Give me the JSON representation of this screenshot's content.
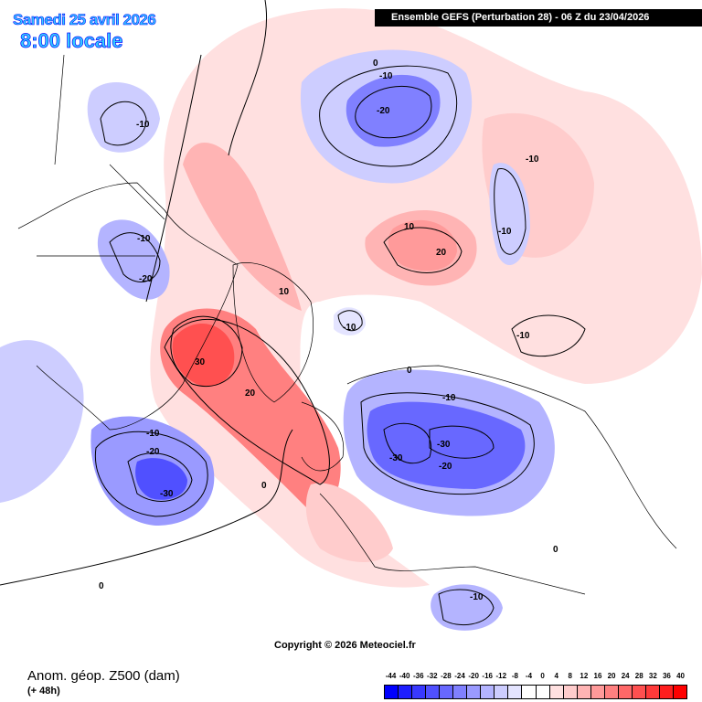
{
  "header": {
    "date": "Samedi 25 avril 2026",
    "local_time": "8:00 locale",
    "run_info": "Ensemble GEFS  (Perturbation 28)  -  06 Z du 23/04/2026"
  },
  "footer": {
    "parameter": "Anom. géop. Z500 (dam)",
    "lead_time": "(+ 48h)",
    "copyright": "Copyright © 2026 Meteociel.fr"
  },
  "legend": {
    "labels": [
      "-44",
      "-40",
      "-36",
      "-32",
      "-28",
      "-24",
      "-20",
      "-16",
      "-12",
      "-8",
      "-4",
      "0",
      "4",
      "8",
      "12",
      "16",
      "20",
      "24",
      "28",
      "32",
      "36",
      "40"
    ],
    "colors": [
      "#0000ff",
      "#1e1eff",
      "#3838ff",
      "#5050ff",
      "#6868ff",
      "#8080ff",
      "#9a9aff",
      "#b4b4ff",
      "#cdcdff",
      "#e4e4ff",
      "#ffffff",
      "#ffffff",
      "#ffe0e0",
      "#ffcccc",
      "#ffb4b4",
      "#ff9a9a",
      "#ff8080",
      "#ff6868",
      "#ff5050",
      "#ff3a3a",
      "#ff1e1e",
      "#ff0000"
    ]
  },
  "contour_labels": [
    {
      "id": "a",
      "text": "-10"
    },
    {
      "id": "b",
      "text": "-10"
    },
    {
      "id": "c",
      "text": "-20"
    },
    {
      "id": "d",
      "text": "-10"
    },
    {
      "id": "e",
      "text": "-20"
    },
    {
      "id": "f",
      "text": "-10"
    },
    {
      "id": "g",
      "text": "-20"
    },
    {
      "id": "h",
      "text": "-30"
    },
    {
      "id": "i",
      "text": "30"
    },
    {
      "id": "j",
      "text": "20"
    },
    {
      "id": "k",
      "text": "10"
    },
    {
      "id": "l",
      "text": "-10"
    },
    {
      "id": "m",
      "text": "10"
    },
    {
      "id": "n",
      "text": "20"
    },
    {
      "id": "o",
      "text": "-10"
    },
    {
      "id": "p",
      "text": "-10"
    },
    {
      "id": "q",
      "text": "-30"
    },
    {
      "id": "r",
      "text": "-30"
    },
    {
      "id": "s",
      "text": "-20"
    },
    {
      "id": "t",
      "text": "-10"
    },
    {
      "id": "u",
      "text": "0"
    },
    {
      "id": "v",
      "text": "0"
    },
    {
      "id": "w",
      "text": "0"
    },
    {
      "id": "x",
      "text": "0"
    },
    {
      "id": "y",
      "text": "-10"
    },
    {
      "id": "z",
      "text": "0"
    },
    {
      "id": "aa",
      "text": "-10"
    }
  ]
}
